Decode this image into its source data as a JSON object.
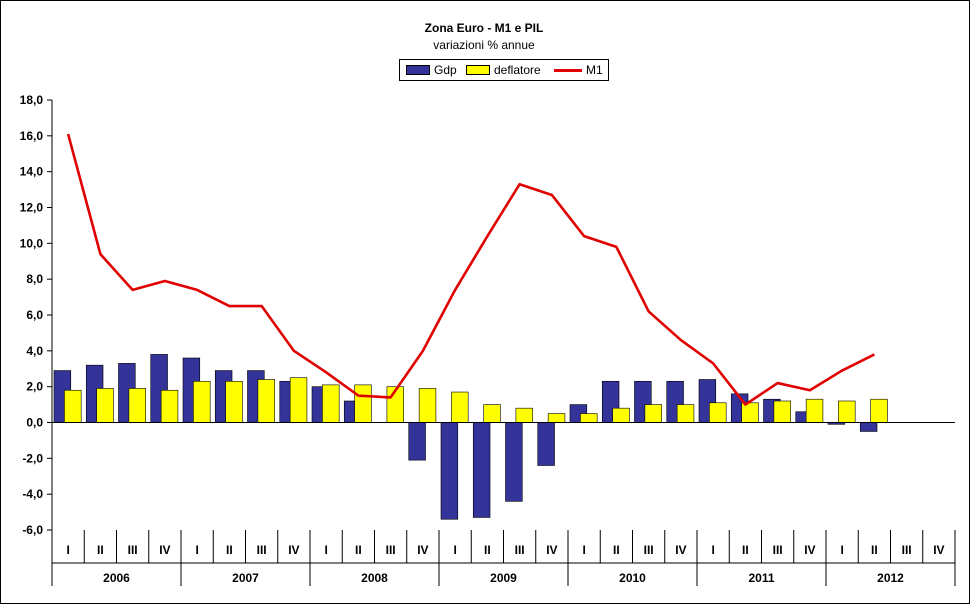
{
  "chart_data": {
    "type": "bar",
    "title": "Zona Euro - M1 e PIL",
    "subtitle": "variazioni % annue",
    "legend_position": "top-center",
    "ylim": [
      -6,
      18
    ],
    "ytick_step": 2,
    "ytick_labels": [
      "-6,0",
      "-4,0",
      "-2,0",
      "0,0",
      "2,0",
      "4,0",
      "6,0",
      "8,0",
      "10,0",
      "12,0",
      "14,0",
      "16,0",
      "18,0"
    ],
    "grid": false,
    "quarters": [
      "I",
      "II",
      "III",
      "IV"
    ],
    "years": [
      "2006",
      "2007",
      "2008",
      "2009",
      "2010",
      "2011",
      "2012"
    ],
    "series": [
      {
        "name": "Gdp",
        "kind": "bar",
        "color": "#333399",
        "values": [
          2.9,
          3.2,
          3.3,
          3.8,
          3.6,
          2.9,
          2.9,
          2.3,
          2.0,
          1.2,
          null,
          -2.1,
          -5.4,
          -5.3,
          -4.4,
          -2.4,
          1.0,
          2.3,
          2.3,
          2.3,
          2.4,
          1.6,
          1.3,
          0.6,
          -0.1,
          -0.5,
          null,
          null
        ]
      },
      {
        "name": "deflatore",
        "kind": "bar",
        "color": "#ffff00",
        "values": [
          1.8,
          1.9,
          1.9,
          1.8,
          2.3,
          2.3,
          2.4,
          2.5,
          2.1,
          2.1,
          2.0,
          1.9,
          1.7,
          1.0,
          0.8,
          0.5,
          0.5,
          0.8,
          1.0,
          1.0,
          1.1,
          1.1,
          1.2,
          1.3,
          1.2,
          1.3,
          null,
          null
        ]
      },
      {
        "name": "M1",
        "kind": "line",
        "color": "#e00000",
        "values": [
          16.1,
          9.4,
          7.4,
          7.9,
          7.4,
          6.5,
          6.5,
          4.0,
          2.8,
          1.5,
          1.4,
          4.0,
          7.4,
          10.4,
          13.3,
          12.7,
          10.4,
          9.8,
          6.2,
          4.6,
          3.3,
          1.0,
          2.2,
          1.8,
          2.9,
          3.8,
          null,
          null
        ]
      }
    ]
  }
}
